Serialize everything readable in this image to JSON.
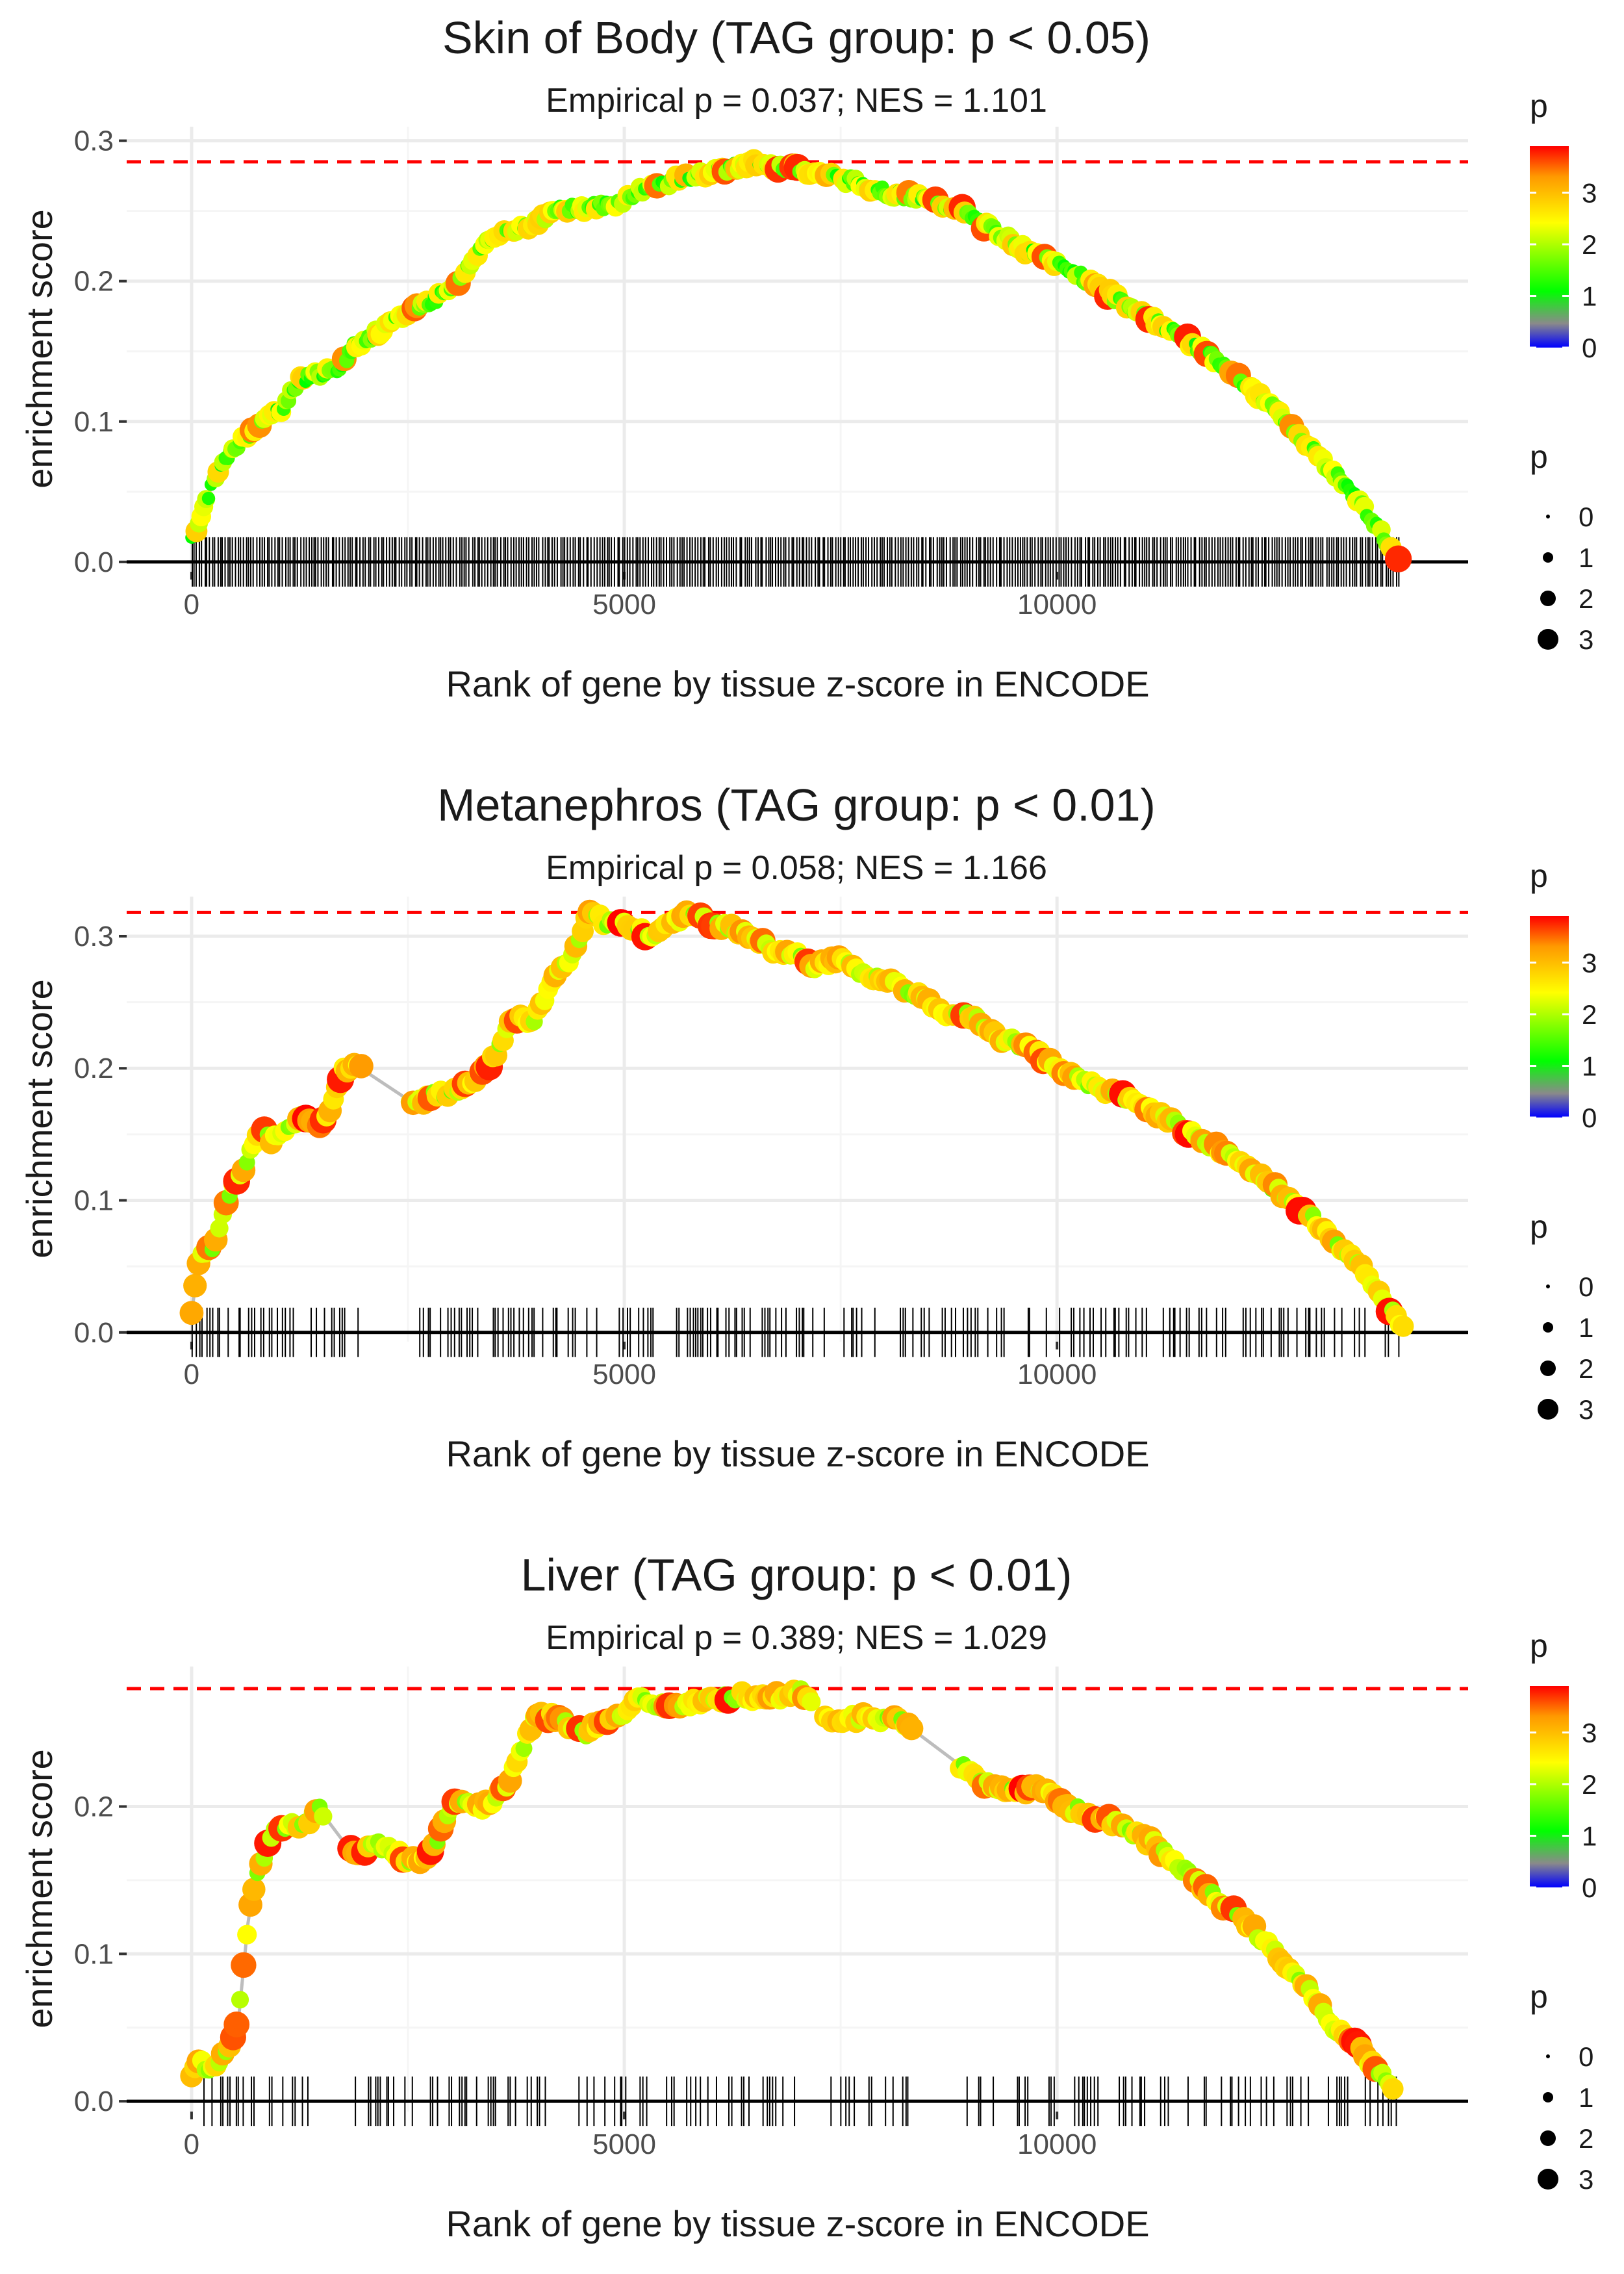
{
  "colors": {
    "panel_bg": "#ffffff",
    "grid": "#ebebeb",
    "curve": "#bdbdbd",
    "ref_line": "#ff0000",
    "rug": "#000000",
    "text": "#1a1a1a",
    "tick_text": "#4d4d4d",
    "gradient": [
      "#0000ff",
      "#8a8a8a",
      "#00ff00",
      "#ffff00",
      "#ff9900",
      "#ff0000"
    ]
  },
  "chart_data": [
    {
      "type": "line",
      "title": "Skin of Body (TAG group: p < 0.05)",
      "subtitle": "Empirical p = 0.037; NES = 1.101",
      "xlabel": "Rank of gene by tissue z-score in ENCODE",
      "ylabel": "enrichment score",
      "xlim": [
        -750,
        14750
      ],
      "ylim": [
        -0.007,
        0.31
      ],
      "xticks": [
        0,
        5000,
        10000
      ],
      "xtick_labels": [
        "0",
        "5000",
        "10000"
      ],
      "yticks": [
        0.0,
        0.1,
        0.2,
        0.3
      ],
      "ytick_labels": [
        "0.0",
        "0.1",
        "0.2",
        "0.3"
      ],
      "max_es": 0.285,
      "es_points": [
        [
          0,
          0.015
        ],
        [
          150,
          0.04
        ],
        [
          300,
          0.065
        ],
        [
          550,
          0.085
        ],
        [
          800,
          0.1
        ],
        [
          1050,
          0.11
        ],
        [
          1250,
          0.13
        ],
        [
          1500,
          0.135
        ],
        [
          1650,
          0.135
        ],
        [
          1900,
          0.155
        ],
        [
          2200,
          0.165
        ],
        [
          2550,
          0.18
        ],
        [
          2900,
          0.19
        ],
        [
          3150,
          0.205
        ],
        [
          3350,
          0.225
        ],
        [
          3600,
          0.235
        ],
        [
          3900,
          0.24
        ],
        [
          4200,
          0.25
        ],
        [
          4500,
          0.252
        ],
        [
          4900,
          0.255
        ],
        [
          5200,
          0.265
        ],
        [
          5600,
          0.272
        ],
        [
          6000,
          0.277
        ],
        [
          6500,
          0.284
        ],
        [
          6900,
          0.281
        ],
        [
          7300,
          0.276
        ],
        [
          7700,
          0.27
        ],
        [
          8100,
          0.262
        ],
        [
          8500,
          0.258
        ],
        [
          8900,
          0.25
        ],
        [
          9300,
          0.235
        ],
        [
          9700,
          0.22
        ],
        [
          10100,
          0.21
        ],
        [
          10500,
          0.195
        ],
        [
          10900,
          0.18
        ],
        [
          11300,
          0.165
        ],
        [
          11700,
          0.15
        ],
        [
          12100,
          0.13
        ],
        [
          12500,
          0.11
        ],
        [
          12800,
          0.09
        ],
        [
          13100,
          0.07
        ],
        [
          13400,
          0.05
        ],
        [
          13650,
          0.03
        ],
        [
          13850,
          0.01
        ],
        [
          13950,
          0.003
        ]
      ],
      "rug_density": 1.0,
      "rug_gaps": [],
      "legend_color": {
        "title": "p",
        "ticks": [
          "0",
          "1",
          "2",
          "3"
        ],
        "max": 3.9
      },
      "legend_size": {
        "title": "p",
        "labels": [
          "0",
          "1",
          "2",
          "3"
        ]
      }
    },
    {
      "type": "line",
      "title": "Metanephros (TAG group: p < 0.01)",
      "subtitle": "Empirical p = 0.058; NES = 1.166",
      "xlabel": "Rank of gene by tissue z-score in ENCODE",
      "ylabel": "enrichment score",
      "xlim": [
        -750,
        14750
      ],
      "ylim": [
        -0.007,
        0.33
      ],
      "xticks": [
        0,
        5000,
        10000
      ],
      "xtick_labels": [
        "0",
        "5000",
        "10000"
      ],
      "yticks": [
        0.0,
        0.1,
        0.2,
        0.3
      ],
      "ytick_labels": [
        "0.0",
        "0.1",
        "0.2",
        "0.3"
      ],
      "max_es": 0.318,
      "es_points": [
        [
          0,
          0.015
        ],
        [
          100,
          0.06
        ],
        [
          250,
          0.065
        ],
        [
          400,
          0.1
        ],
        [
          600,
          0.125
        ],
        [
          800,
          0.155
        ],
        [
          900,
          0.145
        ],
        [
          1050,
          0.15
        ],
        [
          1300,
          0.165
        ],
        [
          1450,
          0.155
        ],
        [
          1600,
          0.165
        ],
        [
          1750,
          0.2
        ],
        [
          1900,
          0.2
        ],
        [
          2000,
          0.198
        ],
        [
          2600,
          0.172
        ],
        [
          2750,
          0.18
        ],
        [
          3100,
          0.182
        ],
        [
          3400,
          0.2
        ],
        [
          3550,
          0.215
        ],
        [
          3700,
          0.24
        ],
        [
          3950,
          0.235
        ],
        [
          4200,
          0.27
        ],
        [
          4400,
          0.285
        ],
        [
          4600,
          0.318
        ],
        [
          4800,
          0.31
        ],
        [
          5000,
          0.31
        ],
        [
          5300,
          0.3
        ],
        [
          5500,
          0.31
        ],
        [
          5800,
          0.318
        ],
        [
          6000,
          0.31
        ],
        [
          6300,
          0.305
        ],
        [
          6700,
          0.29
        ],
        [
          7000,
          0.285
        ],
        [
          7200,
          0.278
        ],
        [
          7500,
          0.282
        ],
        [
          7800,
          0.27
        ],
        [
          8100,
          0.265
        ],
        [
          8400,
          0.255
        ],
        [
          8700,
          0.24
        ],
        [
          9000,
          0.24
        ],
        [
          9300,
          0.225
        ],
        [
          9700,
          0.215
        ],
        [
          10100,
          0.195
        ],
        [
          10500,
          0.185
        ],
        [
          10900,
          0.175
        ],
        [
          11300,
          0.16
        ],
        [
          11700,
          0.145
        ],
        [
          12100,
          0.13
        ],
        [
          12500,
          0.11
        ],
        [
          12900,
          0.09
        ],
        [
          13200,
          0.07
        ],
        [
          13500,
          0.05
        ],
        [
          13800,
          0.02
        ],
        [
          14000,
          0.005
        ]
      ],
      "rug_density": 0.45,
      "rug_gaps": [
        [
          1950,
          2550
        ]
      ],
      "legend_color": {
        "title": "p",
        "ticks": [
          "0",
          "1",
          "2",
          "3"
        ],
        "max": 3.9
      },
      "legend_size": {
        "title": "p",
        "labels": [
          "0",
          "1",
          "2",
          "3"
        ]
      }
    },
    {
      "type": "line",
      "title": "Liver (TAG group: p < 0.01)",
      "subtitle": "Empirical p = 0.389; NES = 1.029",
      "xlabel": "Rank of gene by tissue z-score in ENCODE",
      "ylabel": "enrichment score",
      "xlim": [
        -750,
        14750
      ],
      "ylim": [
        -0.007,
        0.295
      ],
      "xticks": [
        0,
        5000,
        10000
      ],
      "xtick_labels": [
        "0",
        "5000",
        "10000"
      ],
      "yticks": [
        0.0,
        0.1,
        0.2
      ],
      "ytick_labels": [
        "0.0",
        "0.1",
        "0.2"
      ],
      "max_es": 0.28,
      "es_points": [
        [
          0,
          0.02
        ],
        [
          100,
          0.03
        ],
        [
          200,
          0.02
        ],
        [
          350,
          0.03
        ],
        [
          450,
          0.04
        ],
        [
          550,
          0.06
        ],
        [
          600,
          0.09
        ],
        [
          650,
          0.12
        ],
        [
          700,
          0.14
        ],
        [
          800,
          0.16
        ],
        [
          900,
          0.18
        ],
        [
          1000,
          0.185
        ],
        [
          1150,
          0.19
        ],
        [
          1300,
          0.185
        ],
        [
          1450,
          0.2
        ],
        [
          1900,
          0.165
        ],
        [
          2100,
          0.175
        ],
        [
          2300,
          0.17
        ],
        [
          2500,
          0.165
        ],
        [
          2650,
          0.16
        ],
        [
          2850,
          0.18
        ],
        [
          3000,
          0.2
        ],
        [
          3150,
          0.205
        ],
        [
          3350,
          0.2
        ],
        [
          3500,
          0.205
        ],
        [
          3650,
          0.215
        ],
        [
          3800,
          0.235
        ],
        [
          3950,
          0.26
        ],
        [
          4150,
          0.262
        ],
        [
          4350,
          0.255
        ],
        [
          4550,
          0.25
        ],
        [
          4750,
          0.258
        ],
        [
          4950,
          0.262
        ],
        [
          5150,
          0.272
        ],
        [
          5400,
          0.27
        ],
        [
          5700,
          0.27
        ],
        [
          6000,
          0.272
        ],
        [
          6300,
          0.275
        ],
        [
          6600,
          0.274
        ],
        [
          6900,
          0.275
        ],
        [
          7050,
          0.278
        ],
        [
          7400,
          0.258
        ],
        [
          7700,
          0.26
        ],
        [
          7900,
          0.26
        ],
        [
          8200,
          0.258
        ],
        [
          8950,
          0.225
        ],
        [
          9200,
          0.215
        ],
        [
          9500,
          0.212
        ],
        [
          9800,
          0.212
        ],
        [
          10100,
          0.2
        ],
        [
          10400,
          0.195
        ],
        [
          10800,
          0.185
        ],
        [
          11100,
          0.175
        ],
        [
          11400,
          0.16
        ],
        [
          11700,
          0.145
        ],
        [
          12000,
          0.13
        ],
        [
          12300,
          0.115
        ],
        [
          12600,
          0.095
        ],
        [
          12900,
          0.075
        ],
        [
          13200,
          0.05
        ],
        [
          13500,
          0.035
        ],
        [
          13700,
          0.02
        ],
        [
          13900,
          0.01
        ]
      ],
      "rug_density": 0.35,
      "rug_gaps": [
        [
          1500,
          1850
        ],
        [
          7150,
          7350
        ],
        [
          8300,
          8900
        ]
      ],
      "legend_color": {
        "title": "p",
        "ticks": [
          "0",
          "1",
          "2",
          "3"
        ],
        "max": 3.9
      },
      "legend_size": {
        "title": "p",
        "labels": [
          "0",
          "1",
          "2",
          "3"
        ]
      }
    }
  ]
}
